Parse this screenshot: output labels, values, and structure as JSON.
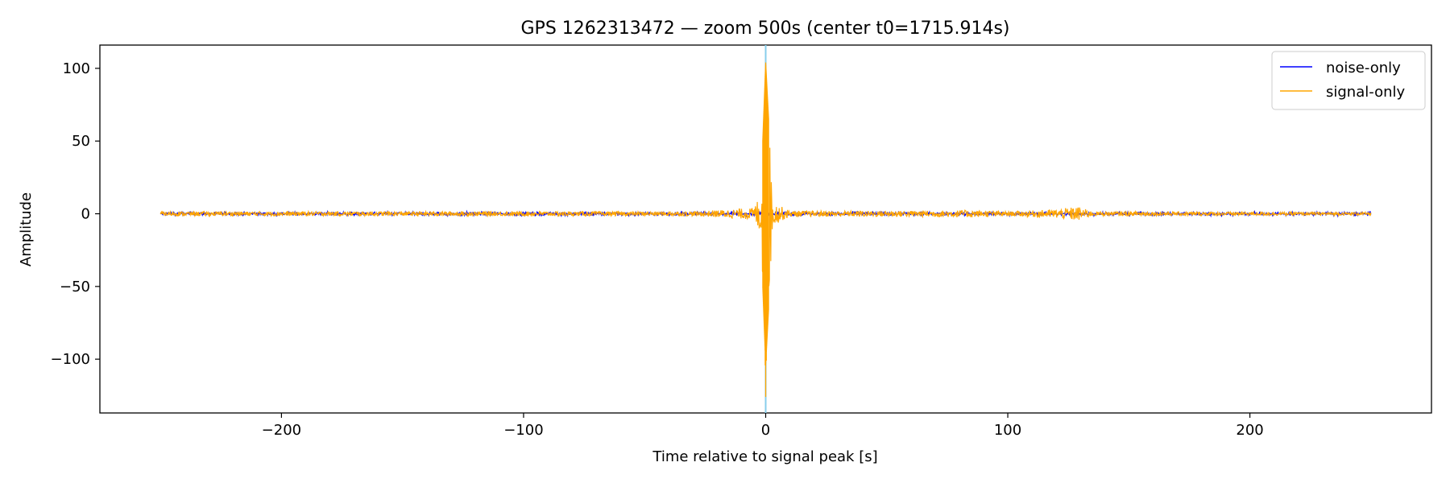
{
  "chart_data": {
    "type": "line",
    "title": "GPS 1262313472 — zoom 500s (center t0=1715.914s)",
    "xlabel": "Time relative to signal peak [s]",
    "ylabel": "Amplitude",
    "xlim": [
      -275,
      275
    ],
    "ylim": [
      -137,
      116
    ],
    "xticks": [
      -200,
      -100,
      0,
      100,
      200
    ],
    "xtick_labels": [
      "−200",
      "−100",
      "0",
      "100",
      "200"
    ],
    "yticks": [
      100,
      50,
      0,
      -50,
      -100
    ],
    "ytick_labels": [
      "100",
      "50",
      "0",
      "−50",
      "−100"
    ],
    "grid": false,
    "legend_position": "top-right",
    "series": [
      {
        "name": "noise-only",
        "color": "#0000ff",
        "x_range": [
          -250,
          250
        ],
        "amplitude_envelope": 2.5
      },
      {
        "name": "signal-only",
        "color": "#ffa500",
        "x_range": [
          -250,
          250
        ],
        "peak_x": 0,
        "peak_max": 104,
        "peak_min": -126,
        "envelope_points": [
          {
            "x": -250,
            "amp": 1.5
          },
          {
            "x": -30,
            "amp": 1.5
          },
          {
            "x": -5,
            "amp": 4
          },
          {
            "x": -2,
            "amp": 15
          },
          {
            "x": 0,
            "amp": 104
          },
          {
            "x": 3,
            "amp": 8
          },
          {
            "x": 10,
            "amp": 2
          },
          {
            "x": 55,
            "amp": 2
          },
          {
            "x": 85,
            "amp": 2.5
          },
          {
            "x": 100,
            "amp": 1.5
          },
          {
            "x": 120,
            "amp": 3
          },
          {
            "x": 129,
            "amp": 5
          },
          {
            "x": 135,
            "amp": 1.5
          },
          {
            "x": 250,
            "amp": 1
          }
        ]
      }
    ],
    "vline": {
      "x": 0,
      "color": "#87ceeb"
    }
  }
}
